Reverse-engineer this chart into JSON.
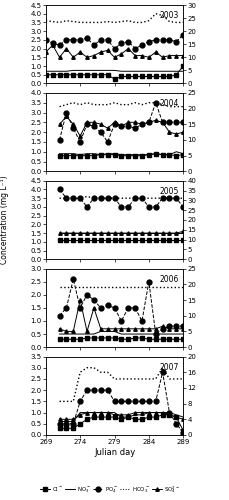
{
  "julian_days": [
    269,
    270,
    271,
    272,
    273,
    274,
    275,
    276,
    277,
    278,
    279,
    280,
    281,
    282,
    283,
    284,
    285,
    286,
    287,
    288,
    289
  ],
  "years": [
    "2003",
    "2004",
    "2005",
    "2006",
    "2007"
  ],
  "xlim": [
    269,
    289
  ],
  "xticks": [
    269,
    274,
    279,
    284,
    289
  ],
  "data": {
    "2003": {
      "jd": [
        269,
        270,
        271,
        272,
        273,
        274,
        275,
        276,
        277,
        278,
        279,
        280,
        281,
        282,
        283,
        284,
        285,
        286,
        287,
        288,
        289
      ],
      "Cl": [
        0.5,
        0.5,
        0.5,
        0.5,
        0.5,
        0.5,
        0.5,
        0.5,
        0.5,
        0.5,
        0.25,
        0.4,
        0.4,
        0.4,
        0.4,
        0.4,
        0.4,
        0.4,
        0.4,
        0.5,
        1.0
      ],
      "NO3": [
        0.7,
        0.7,
        0.7,
        0.7,
        0.75,
        0.75,
        0.75,
        0.75,
        0.75,
        0.75,
        0.75,
        0.7,
        0.7,
        0.7,
        0.7,
        0.7,
        0.7,
        0.7,
        0.7,
        0.7,
        0.7
      ],
      "PO4": [
        2.5,
        2.3,
        2.2,
        2.5,
        2.5,
        2.5,
        2.6,
        2.2,
        2.5,
        2.5,
        2.0,
        2.3,
        2.4,
        2.0,
        2.2,
        2.4,
        2.5,
        2.5,
        2.5,
        2.4,
        2.8
      ],
      "HCO3": [
        3.6,
        3.55,
        3.5,
        3.6,
        3.55,
        3.5,
        3.5,
        3.5,
        3.5,
        3.55,
        3.5,
        3.55,
        3.6,
        3.5,
        3.5,
        3.6,
        4.0,
        3.9,
        3.55,
        3.5,
        3.5
      ],
      "SO4": [
        1.8,
        2.2,
        1.5,
        2.0,
        1.5,
        1.8,
        1.5,
        1.6,
        1.8,
        1.9,
        1.5,
        1.7,
        2.0,
        1.6,
        1.6,
        1.5,
        1.8,
        1.5,
        1.6,
        1.6,
        1.6
      ]
    },
    "2004": {
      "jd": [
        271,
        272,
        273,
        274,
        275,
        276,
        277,
        278,
        279,
        280,
        281,
        282,
        283,
        284,
        285,
        286,
        287,
        288,
        289
      ],
      "Cl": [
        0.8,
        0.8,
        0.8,
        0.8,
        0.8,
        0.8,
        0.85,
        0.85,
        0.85,
        0.8,
        0.8,
        0.8,
        0.8,
        0.85,
        0.9,
        0.85,
        0.85,
        0.8,
        0.85
      ],
      "NO3": [
        0.9,
        0.9,
        0.9,
        0.85,
        0.9,
        0.9,
        0.85,
        0.9,
        0.9,
        0.85,
        0.85,
        0.85,
        0.85,
        0.85,
        0.9,
        0.85,
        0.85,
        1.0,
        0.9
      ],
      "PO4": [
        1.6,
        3.0,
        2.2,
        1.5,
        2.4,
        2.3,
        2.0,
        1.5,
        2.4,
        2.3,
        2.3,
        2.2,
        2.4,
        2.5,
        3.5,
        2.5,
        2.5,
        2.5,
        2.5
      ],
      "HCO3": [
        3.3,
        3.4,
        3.5,
        3.4,
        3.5,
        3.4,
        3.4,
        3.4,
        3.5,
        3.4,
        3.4,
        3.5,
        3.4,
        3.5,
        3.5,
        3.4,
        3.3,
        3.3,
        3.3
      ],
      "SO4": [
        2.4,
        2.8,
        2.4,
        1.8,
        2.5,
        2.5,
        2.4,
        2.2,
        2.5,
        2.3,
        2.5,
        2.5,
        2.4,
        2.5,
        2.6,
        2.5,
        2.0,
        1.9,
        2.0
      ]
    },
    "2005": {
      "jd": [
        271,
        272,
        273,
        274,
        275,
        276,
        277,
        278,
        279,
        280,
        281,
        282,
        283,
        284,
        285,
        286,
        287,
        288,
        289
      ],
      "Cl": [
        1.1,
        1.1,
        1.1,
        1.1,
        1.1,
        1.1,
        1.1,
        1.1,
        1.1,
        1.1,
        1.1,
        1.1,
        1.1,
        1.1,
        1.1,
        1.1,
        1.1,
        1.1,
        1.1
      ],
      "NO3": [
        1.5,
        1.5,
        1.5,
        1.5,
        1.5,
        1.5,
        1.5,
        1.5,
        1.5,
        1.5,
        1.5,
        1.5,
        1.5,
        1.5,
        1.5,
        1.5,
        1.5,
        1.5,
        1.5
      ],
      "PO4": [
        4.0,
        3.5,
        3.5,
        3.5,
        3.0,
        3.5,
        3.5,
        3.5,
        3.5,
        3.0,
        3.0,
        3.5,
        3.5,
        3.0,
        3.0,
        3.5,
        3.5,
        3.5,
        3.0
      ],
      "HCO3": [
        3.5,
        3.5,
        3.5,
        3.5,
        3.6,
        3.5,
        3.5,
        3.5,
        3.5,
        3.5,
        3.5,
        3.5,
        3.5,
        3.5,
        3.5,
        3.5,
        3.5,
        3.5,
        3.5
      ],
      "SO4": [
        1.5,
        1.5,
        1.5,
        1.5,
        1.5,
        1.5,
        1.5,
        1.5,
        1.5,
        1.5,
        1.5,
        1.5,
        1.5,
        1.5,
        1.5,
        1.5,
        1.5,
        1.5,
        1.6
      ]
    },
    "2006": {
      "jd": [
        271,
        272,
        273,
        274,
        275,
        276,
        277,
        278,
        279,
        280,
        281,
        282,
        283,
        284,
        285,
        286,
        287,
        288,
        289
      ],
      "Cl": [
        0.3,
        0.3,
        0.3,
        0.3,
        0.35,
        0.35,
        0.35,
        0.35,
        0.35,
        0.3,
        0.3,
        0.35,
        0.35,
        0.3,
        0.3,
        0.3,
        0.3,
        0.3,
        0.3
      ],
      "NO3": [
        0.5,
        0.5,
        0.5,
        0.5,
        0.5,
        0.5,
        0.6,
        0.6,
        0.6,
        0.5,
        0.5,
        0.5,
        0.5,
        0.5,
        0.5,
        0.5,
        0.5,
        0.5,
        0.5
      ],
      "PO4": [
        1.2,
        1.5,
        2.6,
        1.5,
        2.0,
        1.8,
        1.5,
        1.6,
        1.5,
        1.0,
        1.5,
        1.5,
        1.0,
        2.5,
        0.5,
        0.7,
        0.8,
        0.8,
        0.8
      ],
      "HCO3": [
        2.3,
        2.3,
        2.3,
        2.3,
        2.3,
        2.3,
        2.3,
        2.3,
        2.3,
        2.3,
        2.3,
        2.3,
        2.3,
        2.3,
        2.3,
        2.3,
        2.3,
        2.3,
        2.3
      ],
      "SO4": [
        0.7,
        0.6,
        0.6,
        1.8,
        0.6,
        1.5,
        0.7,
        0.7,
        0.7,
        0.7,
        0.7,
        0.7,
        0.7,
        0.7,
        0.7,
        0.8,
        0.7,
        0.7,
        0.7
      ]
    },
    "2007": {
      "jd": [
        271,
        272,
        273,
        274,
        275,
        276,
        277,
        278,
        279,
        280,
        281,
        282,
        283,
        284,
        285,
        286,
        287,
        288,
        289
      ],
      "Cl": [
        0.3,
        0.3,
        0.3,
        0.5,
        0.7,
        0.8,
        0.8,
        0.8,
        0.8,
        0.7,
        0.8,
        0.7,
        0.7,
        0.8,
        0.8,
        0.9,
        0.9,
        0.8,
        0.2
      ],
      "NO3": [
        0.6,
        0.6,
        0.6,
        1.0,
        1.0,
        1.0,
        1.0,
        1.0,
        1.0,
        0.8,
        0.8,
        0.9,
        0.9,
        1.0,
        1.0,
        1.0,
        1.0,
        0.9,
        0.8
      ],
      "PO4": [
        0.5,
        0.5,
        0.5,
        1.5,
        2.0,
        2.0,
        2.0,
        2.0,
        1.5,
        1.5,
        1.5,
        1.5,
        1.5,
        1.5,
        1.5,
        2.8,
        1.0,
        0.5,
        0.1
      ],
      "HCO3": [
        1.5,
        1.5,
        1.5,
        2.8,
        3.0,
        3.0,
        2.8,
        2.8,
        2.5,
        2.5,
        2.5,
        2.5,
        2.5,
        2.5,
        2.5,
        3.0,
        2.5,
        2.5,
        2.5
      ],
      "SO4": [
        0.7,
        0.7,
        0.7,
        0.9,
        1.0,
        1.0,
        1.0,
        1.0,
        0.9,
        0.9,
        0.9,
        1.0,
        1.0,
        1.0,
        1.0,
        1.0,
        0.9,
        0.8,
        0.7
      ]
    }
  },
  "ylims": {
    "2003": [
      0,
      4.5
    ],
    "2004": [
      0,
      4.0
    ],
    "2005": [
      0,
      4.5
    ],
    "2006": [
      0,
      3.0
    ],
    "2007": [
      0,
      3.5
    ]
  },
  "y2lims": {
    "2003": [
      0,
      30
    ],
    "2004": [
      0,
      25
    ],
    "2005": [
      0,
      40
    ],
    "2006": [
      0,
      25
    ],
    "2007": [
      0,
      20
    ]
  },
  "yticks": {
    "2003": [
      0,
      0.5,
      1.0,
      1.5,
      2.0,
      2.5,
      3.0,
      3.5,
      4.0,
      4.5
    ],
    "2004": [
      0,
      0.5,
      1.0,
      1.5,
      2.0,
      2.5,
      3.0,
      3.5,
      4.0
    ],
    "2005": [
      0,
      0.5,
      1.0,
      1.5,
      2.0,
      2.5,
      3.0,
      3.5,
      4.0,
      4.5
    ],
    "2006": [
      0,
      0.5,
      1.0,
      1.5,
      2.0,
      2.5,
      3.0
    ],
    "2007": [
      0,
      0.5,
      1.0,
      1.5,
      2.0,
      2.5,
      3.0,
      3.5
    ]
  },
  "y2ticks": {
    "2003": [
      0,
      5,
      10,
      15,
      20,
      25,
      30
    ],
    "2004": [
      0,
      5,
      10,
      15,
      20,
      25
    ],
    "2005": [
      0,
      5,
      10,
      15,
      20,
      25,
      30,
      35,
      40
    ],
    "2006": [
      0,
      5,
      10,
      15,
      20,
      25
    ],
    "2007": [
      0,
      4,
      8,
      12,
      16,
      20
    ]
  },
  "xlabel": "Julian day",
  "ylabel": "Concentration (mg L⁻¹)"
}
